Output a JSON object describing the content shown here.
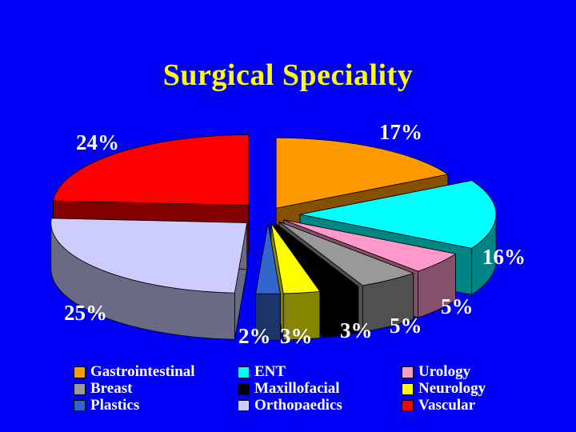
{
  "slide": {
    "title": "Surgical Speciality"
  },
  "chart_data": {
    "type": "pie",
    "title": "Surgical Speciality",
    "three_d": true,
    "exploded": true,
    "slices": [
      {
        "name": "Gastrointestinal",
        "label": "17%",
        "value": 17,
        "color": "#ff9900"
      },
      {
        "name": "ENT",
        "label": "16%",
        "value": 16,
        "color": "#00ffff"
      },
      {
        "name": "Urology",
        "label": "5%",
        "value": 5,
        "color": "#ff99cc"
      },
      {
        "name": "Breast",
        "label": "5%",
        "value": 5,
        "color": "#999999"
      },
      {
        "name": "Maxillofacial",
        "label": "3%",
        "value": 3,
        "color": "#000000"
      },
      {
        "name": "Neurology",
        "label": "3%",
        "value": 3,
        "color": "#ffff00"
      },
      {
        "name": "Plastics",
        "label": "2%",
        "value": 2,
        "color": "#3366cc"
      },
      {
        "name": "Orthopaedics",
        "label": "25%",
        "value": 25,
        "color": "#ccccff"
      },
      {
        "name": "Vascular",
        "label": "24%",
        "value": 24,
        "color": "#ff0000"
      }
    ],
    "legend": {
      "placement": "bottom",
      "order": [
        "Gastrointestinal",
        "ENT",
        "Urology",
        "Breast",
        "Maxillofacial",
        "Neurology",
        "Plastics",
        "Orthopaedics",
        "Vascular"
      ]
    }
  }
}
